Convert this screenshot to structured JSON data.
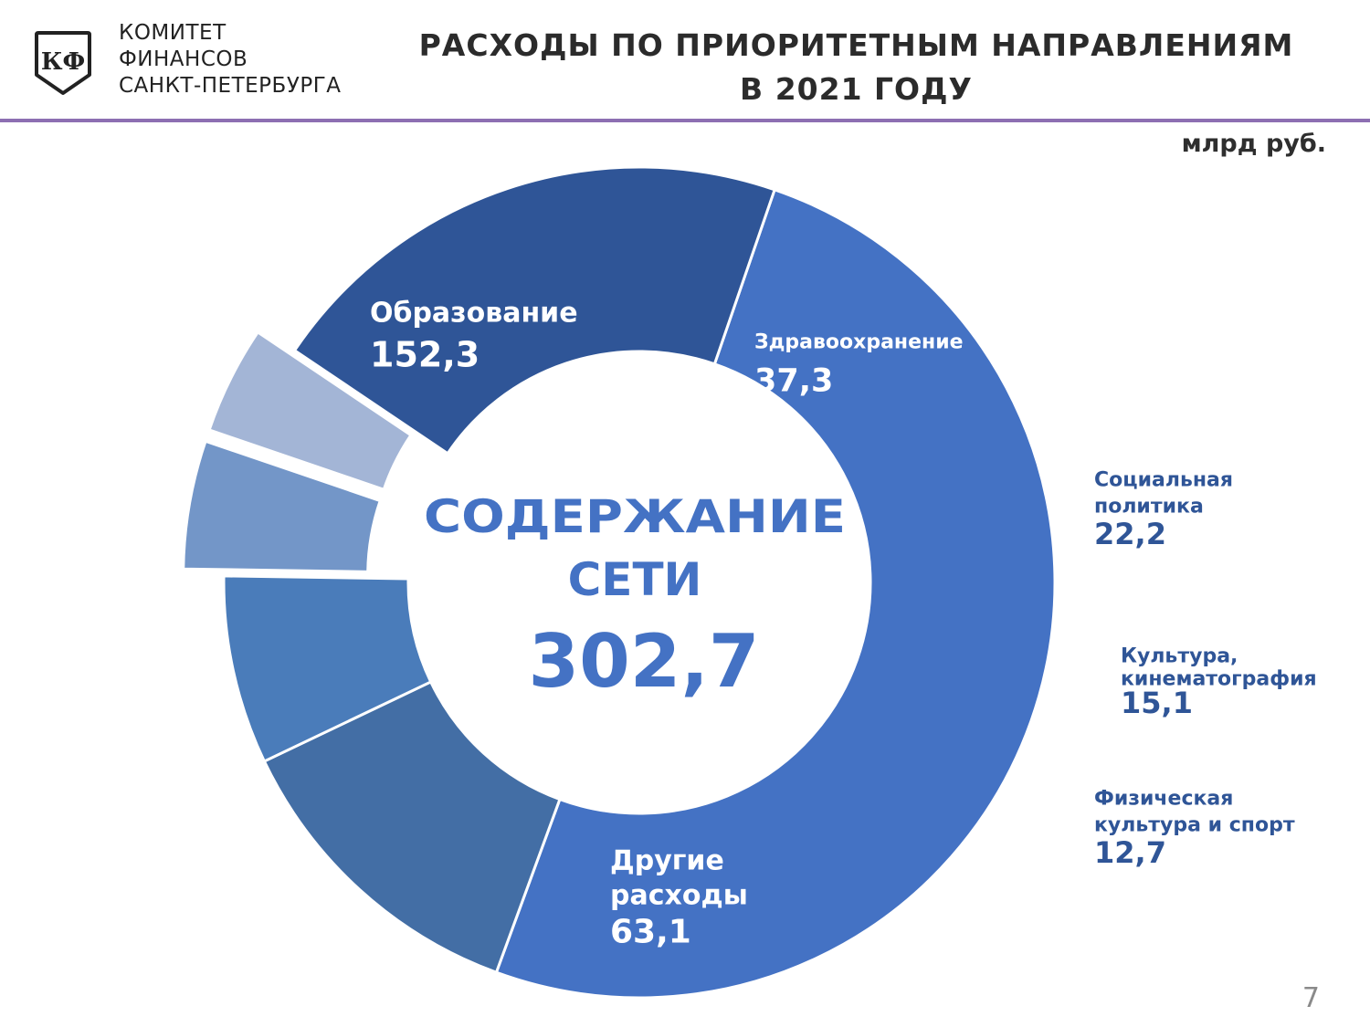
{
  "header": {
    "org_lines": [
      "КОМИТЕТ",
      "ФИНАНСОВ",
      "САНКТ-ПЕТЕРБУРГА"
    ],
    "logo_letters": "КФ",
    "title_lines": [
      "РАСХОДЫ ПО ПРИОРИТЕТНЫМ НАПРАВЛЕНИЯМ",
      "В 2021 ГОДУ"
    ],
    "units": "млрд руб."
  },
  "center": {
    "lines": [
      "СОДЕРЖАНИЕ",
      "СЕТИ"
    ],
    "total": "302,7"
  },
  "page_number": "7",
  "chart_data": {
    "type": "pie",
    "variant": "donut",
    "title": "РАСХОДЫ ПО ПРИОРИТЕТНЫМ НАПРАВЛЕНИЯМ В 2021 ГОДУ",
    "unit": "млрд руб.",
    "total": 302.7,
    "slices": [
      {
        "label_lines": [
          "Образование"
        ],
        "label": "Образование",
        "value": 152.3,
        "value_text": "152,3",
        "color": "#4472c4",
        "label_color": "#ffffff",
        "exploded": false
      },
      {
        "label_lines": [
          "Здравоохранение"
        ],
        "label": "Здравоохранение",
        "value": 37.3,
        "value_text": "37,3",
        "color": "#436ea5",
        "label_color": "#ffffff",
        "exploded": false
      },
      {
        "label_lines": [
          "Социальная",
          "политика"
        ],
        "label": "Социальная политика",
        "value": 22.2,
        "value_text": "22,2",
        "color": "#4a7cba",
        "label_color": "#2f5597",
        "exploded": false
      },
      {
        "label_lines": [
          "Культура,",
          "кинематография"
        ],
        "label": "Культура, кинематография",
        "value": 15.1,
        "value_text": "15,1",
        "color": "#7396c8",
        "label_color": "#2f5597",
        "exploded": true
      },
      {
        "label_lines": [
          "Физическая",
          "культура и спорт"
        ],
        "label": "Физическая культура и спорт",
        "value": 12.7,
        "value_text": "12,7",
        "color": "#a3b5d6",
        "label_color": "#2f5597",
        "exploded": true
      },
      {
        "label_lines": [
          "Другие",
          "расходы"
        ],
        "label": "Другие расходы",
        "value": 63.1,
        "value_text": "63,1",
        "color": "#2f5597",
        "label_color": "#ffffff",
        "exploded": false
      }
    ],
    "center_color": "#4472c4"
  }
}
